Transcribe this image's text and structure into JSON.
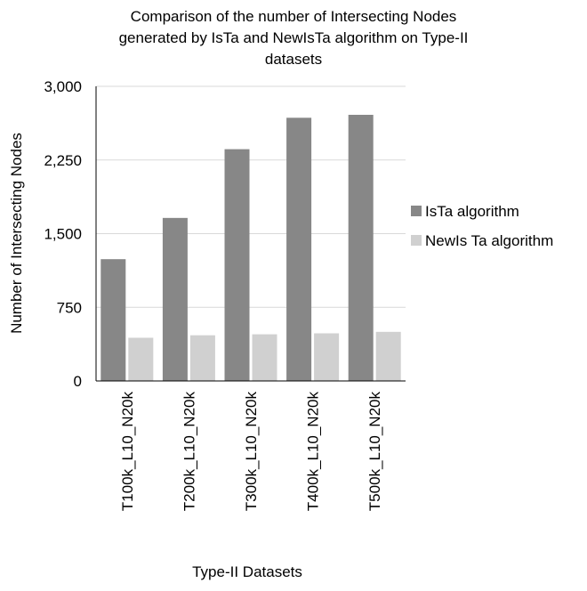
{
  "chart_data": {
    "type": "bar",
    "title_lines": [
      "Comparison of the number of Intersecting Nodes",
      "generated by IsTa and NewIsTa algorithm on Type-II",
      "datasets"
    ],
    "xlabel": "Type-II Datasets",
    "ylabel": "Number of Intersecting Nodes",
    "categories": [
      "T100k_L10_N20k",
      "T200k_L10_N20k",
      "T300k_L10_N20k",
      "T400k_L10_N20k",
      "T500k_L10_N20k"
    ],
    "series": [
      {
        "name": "IsTa algorithm",
        "color": "#878787",
        "values": [
          1240,
          1660,
          2360,
          2680,
          2710
        ]
      },
      {
        "name": "NewIs Ta algorithm",
        "color": "#d0d0d0",
        "values": [
          440,
          465,
          475,
          485,
          500
        ]
      }
    ],
    "ylim": [
      0,
      3000
    ],
    "yticks": [
      0,
      750,
      1500,
      2250,
      3000
    ],
    "ytick_labels": [
      "0",
      "750",
      "1,500",
      "2,250",
      "3,000"
    ],
    "grid": true,
    "legend_position": "right"
  }
}
